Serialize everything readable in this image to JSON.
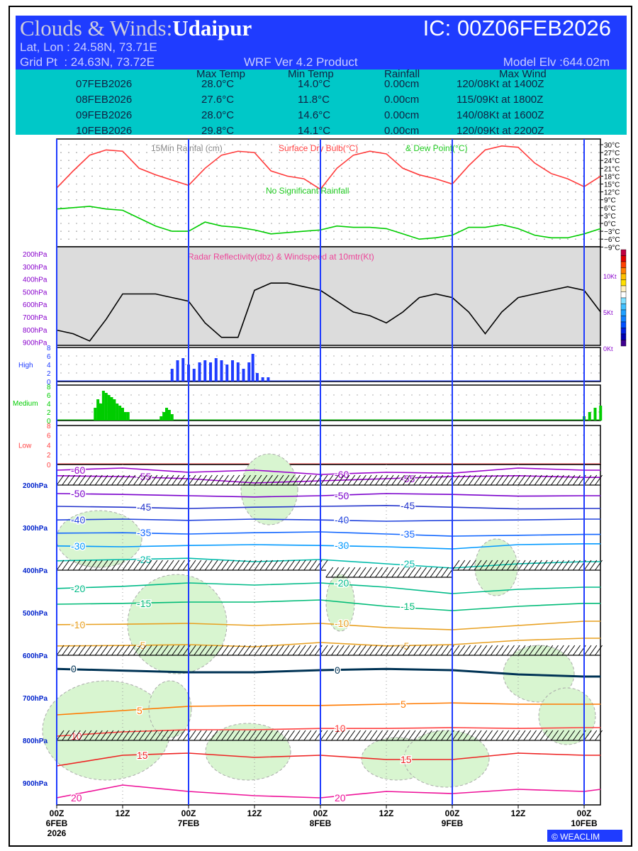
{
  "header": {
    "title_prefix": "Clouds & Winds:",
    "station": "Udaipur",
    "ic": "IC: 00Z06FEB2026",
    "latlon": "Lat, Lon : 24.58N, 73.71E",
    "grid": "Grid Pt  : 24.63N, 73.72E",
    "product": "WRF Ver 4.2 Product",
    "elev": "Model Elv :644.02m"
  },
  "summary": {
    "columns": [
      "Max Temp",
      "Min Temp",
      "Rainfall",
      "Max Wind"
    ],
    "rows": [
      {
        "date": "07FEB2026",
        "max": "28.0°C",
        "min": "14.0°C",
        "rain": "0.00cm",
        "wind": "120/08Kt at 1400Z"
      },
      {
        "date": "08FEB2026",
        "max": "27.6°C",
        "min": "11.8°C",
        "rain": "0.00cm",
        "wind": "115/09Kt at 1800Z"
      },
      {
        "date": "09FEB2026",
        "max": "28.0°C",
        "min": "14.6°C",
        "rain": "0.00cm",
        "wind": "140/08Kt at 1600Z"
      },
      {
        "date": "10FEB2026",
        "max": "29.8°C",
        "min": "14.1°C",
        "rain": "0.00cm",
        "wind": "120/09Kt at 2200Z"
      }
    ]
  },
  "chart_data": [
    {
      "type": "line",
      "panel": "surface",
      "title_rain": "15Min Rainfal (cm)",
      "title_temp": "Surface Dry Bulb(°C)",
      "title_dew": "& Dew Point(°C)",
      "note": "No Significant Rainfall",
      "yticks": [
        "30°C",
        "27°C",
        "24°C",
        "21°C",
        "18°C",
        "15°C",
        "12°C",
        "9°C",
        "6°C",
        "3°C",
        "0°C",
        "−3°C",
        "−6°C",
        "−9°C"
      ],
      "ylim": [
        -9,
        30
      ],
      "hours": [
        0,
        3,
        6,
        9,
        12,
        15,
        18,
        21,
        24,
        27,
        30,
        33,
        36,
        39,
        42,
        45,
        48,
        51,
        54,
        57,
        60,
        63,
        66,
        69,
        72,
        75,
        78,
        81,
        84,
        87,
        90,
        93,
        96,
        99
      ],
      "series": [
        {
          "name": "Surface Dry Bulb",
          "color": "#ff3a3a",
          "values": [
            13.5,
            20,
            26,
            28,
            27.5,
            21,
            18.5,
            16.5,
            14.5,
            21,
            26,
            27.5,
            27,
            20,
            18,
            17,
            13,
            21,
            26,
            27.5,
            26.5,
            21,
            18.5,
            17,
            15,
            22,
            28,
            29.5,
            29,
            23,
            19,
            17,
            14,
            18
          ]
        },
        {
          "name": "Dew Point",
          "color": "#00cc00",
          "values": [
            5.5,
            6,
            6.5,
            5.5,
            5,
            2,
            -1,
            -3,
            -3,
            0.5,
            -1,
            -1.5,
            -2.5,
            -4,
            -3.5,
            -3,
            -2.5,
            -1,
            -1.5,
            -1.5,
            -2,
            -4,
            -6,
            -5.5,
            -4.5,
            -1.5,
            -1.5,
            -0.5,
            -2,
            -4.5,
            -5.5,
            -5.5,
            -4,
            -2
          ]
        }
      ]
    },
    {
      "type": "line",
      "panel": "radar",
      "title": "Radar Reflectivity(dbz) & Windspeed at 10mtr(Kt)",
      "pressure_ticks": [
        "200hPa",
        "300hPa",
        "400hPa",
        "500hPa",
        "600hPa",
        "700hPa",
        "800hPa",
        "900hPa"
      ],
      "wind_ticks": [
        "10Kt",
        "5Kt",
        "0Kt"
      ],
      "hours": [
        0,
        3,
        6,
        9,
        12,
        15,
        18,
        21,
        24,
        27,
        30,
        33,
        36,
        39,
        42,
        45,
        48,
        51,
        54,
        57,
        60,
        63,
        66,
        69,
        72,
        75,
        78,
        81,
        84,
        87,
        90,
        93,
        96,
        99
      ],
      "wind_kt": [
        2.5,
        2,
        1,
        4,
        7.5,
        7.5,
        7.5,
        7,
        6.5,
        3.5,
        1.5,
        1.5,
        8,
        9,
        9,
        8.5,
        8,
        6.5,
        5,
        4.5,
        3.5,
        5,
        7,
        7.5,
        7,
        5,
        2,
        5,
        7,
        7.5,
        8,
        8.5,
        8,
        5
      ]
    },
    {
      "type": "bar",
      "panel": "clouds",
      "labels": {
        "high": "High",
        "medium": "Medium",
        "low": "Low"
      },
      "yticks": [
        "8",
        "6",
        "4",
        "2",
        "0"
      ],
      "ylim": [
        0,
        8
      ],
      "high": [
        [
          21,
          3
        ],
        [
          22,
          5
        ],
        [
          23,
          5.5
        ],
        [
          24,
          4
        ],
        [
          25,
          3
        ],
        [
          26,
          4.5
        ],
        [
          27,
          5
        ],
        [
          28,
          4.5
        ],
        [
          29,
          5.5
        ],
        [
          30,
          5
        ],
        [
          31,
          4
        ],
        [
          32,
          5
        ],
        [
          33,
          4.5
        ],
        [
          34,
          3
        ],
        [
          35,
          4.5
        ],
        [
          35.7,
          6.5
        ],
        [
          36.5,
          2
        ],
        [
          37.5,
          1
        ],
        [
          38.5,
          1
        ]
      ],
      "medium": [
        [
          7,
          3
        ],
        [
          7.5,
          5
        ],
        [
          8,
          4
        ],
        [
          8.5,
          7
        ],
        [
          9,
          6.5
        ],
        [
          9.5,
          6
        ],
        [
          10,
          5.5
        ],
        [
          10.5,
          5
        ],
        [
          11,
          4
        ],
        [
          11.5,
          3.5
        ],
        [
          12,
          3
        ],
        [
          12.5,
          2
        ],
        [
          13,
          2
        ],
        [
          19,
          1
        ],
        [
          19.5,
          2
        ],
        [
          20,
          3
        ],
        [
          20.5,
          2.5
        ],
        [
          21,
          1.5
        ],
        [
          96,
          1
        ],
        [
          97,
          2
        ],
        [
          98,
          3
        ],
        [
          99,
          3.5
        ]
      ],
      "low": []
    },
    {
      "type": "line",
      "panel": "cross-section",
      "pressure_ticks": [
        "200hPa",
        "300hPa",
        "400hPa",
        "500hPa",
        "600hPa",
        "700hPa",
        "800hPa",
        "900hPa"
      ],
      "hours": [
        0,
        12,
        24,
        36,
        48,
        60,
        72,
        84,
        96,
        99
      ],
      "isotherms": [
        {
          "level": "-60",
          "color": "#9900cc",
          "p": [
            165,
            160,
            170,
            165,
            175,
            170,
            172,
            160,
            165,
            165
          ]
        },
        {
          "level": "-55",
          "color": "#9900cc",
          "p": [
            178,
            180,
            185,
            195,
            190,
            185,
            180,
            178,
            182,
            182
          ]
        },
        {
          "level": "-50",
          "color": "#7a00cc",
          "p": [
            220,
            222,
            225,
            228,
            225,
            220,
            222,
            226,
            225,
            225
          ]
        },
        {
          "level": "-45",
          "color": "#2233cc",
          "p": [
            250,
            252,
            255,
            252,
            250,
            248,
            252,
            256,
            255,
            255
          ]
        },
        {
          "level": "-40",
          "color": "#2244dd",
          "p": [
            282,
            280,
            283,
            280,
            282,
            285,
            283,
            282,
            280,
            280
          ]
        },
        {
          "level": "-35",
          "color": "#1166ff",
          "p": [
            313,
            312,
            315,
            312,
            310,
            315,
            320,
            318,
            316,
            316
          ]
        },
        {
          "level": "-30",
          "color": "#0099ff",
          "p": [
            343,
            345,
            342,
            340,
            342,
            345,
            350,
            340,
            338,
            338
          ]
        },
        {
          "level": "-25",
          "color": "#00bbaa",
          "p": [
            378,
            375,
            372,
            380,
            375,
            385,
            395,
            385,
            380,
            380
          ]
        },
        {
          "level": "-20",
          "color": "#00bb88",
          "p": [
            443,
            438,
            430,
            435,
            430,
            440,
            455,
            445,
            440,
            440
          ]
        },
        {
          "level": "-15",
          "color": "#00bb77",
          "p": [
            480,
            478,
            475,
            475,
            470,
            485,
            495,
            485,
            478,
            478
          ]
        },
        {
          "level": "-10",
          "color": "#e8a020",
          "p": [
            528,
            527,
            525,
            530,
            525,
            535,
            540,
            530,
            520,
            520
          ]
        },
        {
          "level": "-5",
          "color": "#e8a020",
          "p": [
            578,
            577,
            575,
            580,
            570,
            578,
            575,
            565,
            560,
            560
          ]
        },
        {
          "level": "0",
          "color": "#003355",
          "p": [
            632,
            636,
            640,
            640,
            635,
            632,
            635,
            645,
            650,
            650
          ]
        },
        {
          "level": "5",
          "color": "#ff7a00",
          "p": [
            740,
            730,
            720,
            718,
            718,
            715,
            712,
            715,
            715,
            715
          ]
        },
        {
          "level": "10",
          "color": "#ff4040",
          "p": [
            790,
            780,
            775,
            775,
            772,
            772,
            770,
            772,
            770,
            770
          ]
        },
        {
          "level": "15",
          "color": "#ee2222",
          "p": [
            860,
            835,
            830,
            840,
            835,
            845,
            845,
            830,
            835,
            835
          ]
        },
        {
          "level": "20",
          "color": "#ee1199",
          "p": [
            935,
            905,
            920,
            930,
            935,
            920,
            925,
            915,
            920,
            915
          ]
        }
      ],
      "wind_levels_hpa": [
        200,
        400,
        600,
        800
      ]
    }
  ],
  "xaxis": {
    "ticks": [
      {
        "h": 0,
        "l1": "00Z",
        "l2": "6FEB",
        "l3": "2026"
      },
      {
        "h": 12,
        "l1": "12Z"
      },
      {
        "h": 24,
        "l1": "00Z",
        "l2": "7FEB"
      },
      {
        "h": 36,
        "l1": "12Z"
      },
      {
        "h": 48,
        "l1": "00Z",
        "l2": "8FEB"
      },
      {
        "h": 60,
        "l1": "12Z"
      },
      {
        "h": 72,
        "l1": "00Z",
        "l2": "9FEB"
      },
      {
        "h": 84,
        "l1": "12Z"
      },
      {
        "h": 96,
        "l1": "00Z",
        "l2": "10FEB"
      }
    ]
  },
  "logo": "WEACLIM",
  "colorbar": [
    "#c00040",
    "#e00000",
    "#ff4000",
    "#ff8000",
    "#ffc000",
    "#ffe000",
    "#fff0c0",
    "#ffffff",
    "#80e0ff",
    "#40c0ff",
    "#20a0ff",
    "#1080ff",
    "#0050ff",
    "#0020e0",
    "#0000b0",
    "#400090"
  ]
}
